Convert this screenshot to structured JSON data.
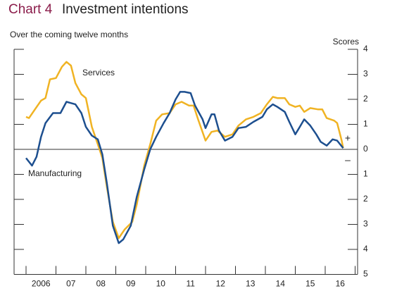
{
  "chart_data": {
    "type": "line",
    "title_prefix": "Chart 4",
    "title": "Investment intentions",
    "subtitle": "Over the coming twelve months",
    "y_axis_label": "Scores",
    "axis_signs": {
      "positive": "+",
      "negative": "–"
    },
    "xlim": [
      2006,
      2017
    ],
    "xticks": [
      2006,
      2007,
      2008,
      2009,
      2010,
      2011,
      2012,
      2013,
      2014,
      2015,
      2016,
      2017
    ],
    "x_labels": [
      {
        "value": 2006.5,
        "label": "2006"
      },
      {
        "value": 2007.5,
        "label": "07"
      },
      {
        "value": 2008.5,
        "label": "08"
      },
      {
        "value": 2009.5,
        "label": "09"
      },
      {
        "value": 2010.5,
        "label": "10"
      },
      {
        "value": 2011.5,
        "label": "11"
      },
      {
        "value": 2012.5,
        "label": "12"
      },
      {
        "value": 2013.5,
        "label": "13"
      },
      {
        "value": 2014.5,
        "label": "14"
      },
      {
        "value": 2015.5,
        "label": "15"
      },
      {
        "value": 2016.5,
        "label": "16"
      }
    ],
    "ylim": [
      -5,
      4
    ],
    "yticks": [
      4,
      3,
      2,
      1,
      0,
      {
        "value": -1,
        "label": "1"
      },
      {
        "value": -2,
        "label": "2"
      },
      {
        "value": -3,
        "label": "3"
      },
      {
        "value": -4,
        "label": "4"
      },
      {
        "value": -5,
        "label": "5"
      }
    ],
    "zero_line": true,
    "series": [
      {
        "name": "Manufacturing",
        "color": "#1d4f8f",
        "x": [
          2006.0,
          2006.2,
          2006.35,
          2006.5,
          2006.65,
          2006.9,
          2007.15,
          2007.35,
          2007.5,
          2007.65,
          2007.85,
          2008.0,
          2008.2,
          2008.4,
          2008.55,
          2008.7,
          2008.9,
          2009.1,
          2009.25,
          2009.5,
          2009.7,
          2009.95,
          2010.15,
          2010.35,
          2010.6,
          2010.8,
          2011.0,
          2011.15,
          2011.3,
          2011.5,
          2011.65,
          2011.9,
          2012.0,
          2012.2,
          2012.3,
          2012.45,
          2012.65,
          2012.9,
          2013.1,
          2013.35,
          2013.6,
          2013.9,
          2014.05,
          2014.25,
          2014.4,
          2014.65,
          2014.8,
          2015.0,
          2015.15,
          2015.3,
          2015.5,
          2015.7,
          2015.85,
          2016.05,
          2016.25,
          2016.4,
          2016.6
        ],
        "values": [
          -0.35,
          -0.65,
          -0.3,
          0.5,
          1.05,
          1.45,
          1.45,
          1.9,
          1.85,
          1.8,
          1.45,
          0.9,
          0.55,
          0.4,
          -0.2,
          -1.35,
          -3.05,
          -3.75,
          -3.6,
          -3.05,
          -1.9,
          -0.8,
          0,
          0.5,
          1.05,
          1.45,
          2.0,
          2.3,
          2.3,
          2.25,
          1.75,
          1.2,
          0.85,
          1.4,
          1.4,
          0.75,
          0.35,
          0.5,
          0.85,
          0.9,
          1.1,
          1.3,
          1.6,
          1.8,
          1.7,
          1.5,
          1.1,
          0.6,
          0.9,
          1.2,
          0.95,
          0.6,
          0.3,
          0.15,
          0.4,
          0.35,
          0.05
        ]
      },
      {
        "name": "Services",
        "color": "#f0b323",
        "x": [
          2006.0,
          2006.1,
          2006.3,
          2006.5,
          2006.65,
          2006.8,
          2007.0,
          2007.2,
          2007.35,
          2007.5,
          2007.65,
          2007.85,
          2008.0,
          2008.2,
          2008.4,
          2008.55,
          2008.7,
          2008.9,
          2009.1,
          2009.3,
          2009.55,
          2009.7,
          2009.95,
          2010.15,
          2010.35,
          2010.55,
          2010.8,
          2011.0,
          2011.2,
          2011.45,
          2011.6,
          2011.75,
          2012.0,
          2012.2,
          2012.4,
          2012.65,
          2012.9,
          2013.1,
          2013.35,
          2013.6,
          2013.85,
          2014.05,
          2014.25,
          2014.4,
          2014.65,
          2014.8,
          2015.0,
          2015.15,
          2015.3,
          2015.5,
          2015.75,
          2015.9,
          2016.05,
          2016.3,
          2016.4,
          2016.55,
          2016.6
        ],
        "values": [
          1.3,
          1.25,
          1.6,
          1.95,
          2.05,
          2.8,
          2.85,
          3.3,
          3.5,
          3.35,
          2.65,
          2.2,
          2.05,
          0.9,
          0.2,
          -0.35,
          -1.5,
          -2.9,
          -3.55,
          -3.2,
          -2.9,
          -2.2,
          -0.65,
          0.2,
          1.15,
          1.4,
          1.45,
          1.8,
          1.9,
          1.75,
          1.75,
          1.2,
          0.35,
          0.7,
          0.75,
          0.5,
          0.6,
          0.95,
          1.2,
          1.3,
          1.45,
          1.8,
          2.1,
          2.05,
          2.05,
          1.8,
          1.7,
          1.75,
          1.5,
          1.65,
          1.6,
          1.6,
          1.25,
          1.15,
          1.05,
          0.35,
          0.05
        ]
      }
    ]
  }
}
